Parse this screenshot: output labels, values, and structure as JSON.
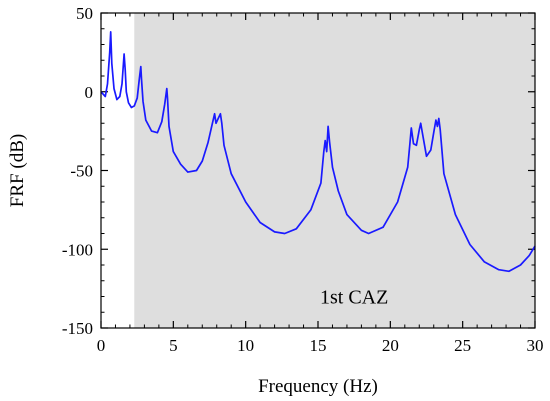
{
  "chart_data": {
    "type": "line",
    "xlabel": "Frequency (Hz)",
    "ylabel": "FRF (dB)",
    "xlim": [
      0,
      30
    ],
    "ylim": [
      -150,
      50
    ],
    "xticks": [
      0,
      5,
      10,
      15,
      20,
      25,
      30
    ],
    "yticks": [
      50,
      0,
      -50,
      -100,
      -150
    ],
    "xtick_labels": [
      "0",
      "5",
      "10",
      "15",
      "20",
      "25",
      "30"
    ],
    "ytick_labels": [
      "50",
      "0",
      "-50",
      "-100",
      "-150"
    ],
    "grid": false,
    "series": [
      {
        "color": "#1a1aff",
        "x": [
          0.0,
          0.3,
          0.45,
          0.6,
          0.67,
          0.75,
          0.9,
          1.1,
          1.3,
          1.45,
          1.6,
          1.67,
          1.75,
          1.9,
          2.1,
          2.3,
          2.5,
          2.65,
          2.75,
          2.8,
          2.9,
          3.1,
          3.5,
          3.9,
          4.2,
          4.4,
          4.55,
          4.6,
          4.7,
          5.0,
          5.5,
          6.0,
          6.6,
          7.0,
          7.4,
          7.7,
          7.85,
          7.95,
          8.1,
          8.25,
          8.35,
          8.5,
          9.0,
          10.0,
          11.0,
          12.0,
          12.7,
          13.5,
          14.5,
          15.2,
          15.4,
          15.5,
          15.6,
          15.7,
          15.8,
          16.0,
          16.4,
          17.0,
          18.0,
          18.5,
          19.5,
          20.5,
          21.2,
          21.35,
          21.45,
          21.6,
          21.8,
          22.0,
          22.1,
          22.25,
          22.5,
          22.8,
          23.0,
          23.15,
          23.25,
          23.35,
          23.45,
          23.7,
          24.5,
          25.5,
          26.5,
          27.5,
          28.2,
          29.0,
          29.6,
          30.0
        ],
        "values": [
          0,
          -3,
          5,
          25,
          38,
          18,
          2,
          -5,
          -3,
          5,
          24,
          14,
          0,
          -7,
          -10,
          -9,
          -4,
          8,
          16,
          8,
          -6,
          -18,
          -25,
          -26,
          -19,
          -8,
          2,
          -4,
          -22,
          -38,
          -46,
          -51,
          -50,
          -44,
          -32,
          -20,
          -14,
          -20,
          -17,
          -14,
          -20,
          -34,
          -52,
          -70,
          -83,
          -89,
          -90,
          -87,
          -75,
          -58,
          -38,
          -31,
          -38,
          -22,
          -32,
          -48,
          -63,
          -78,
          -88,
          -90,
          -86,
          -70,
          -48,
          -33,
          -23,
          -33,
          -34,
          -24,
          -20,
          -28,
          -41,
          -37,
          -26,
          -18,
          -22,
          -17,
          -24,
          -52,
          -78,
          -97,
          -108,
          -113,
          -114,
          -110,
          -104,
          -98
        ]
      }
    ],
    "annotations": [
      {
        "text": "1st CAZ"
      }
    ],
    "shaded_region": {
      "x_start": 2.3,
      "x_end": 30,
      "color": "#dedede"
    }
  }
}
